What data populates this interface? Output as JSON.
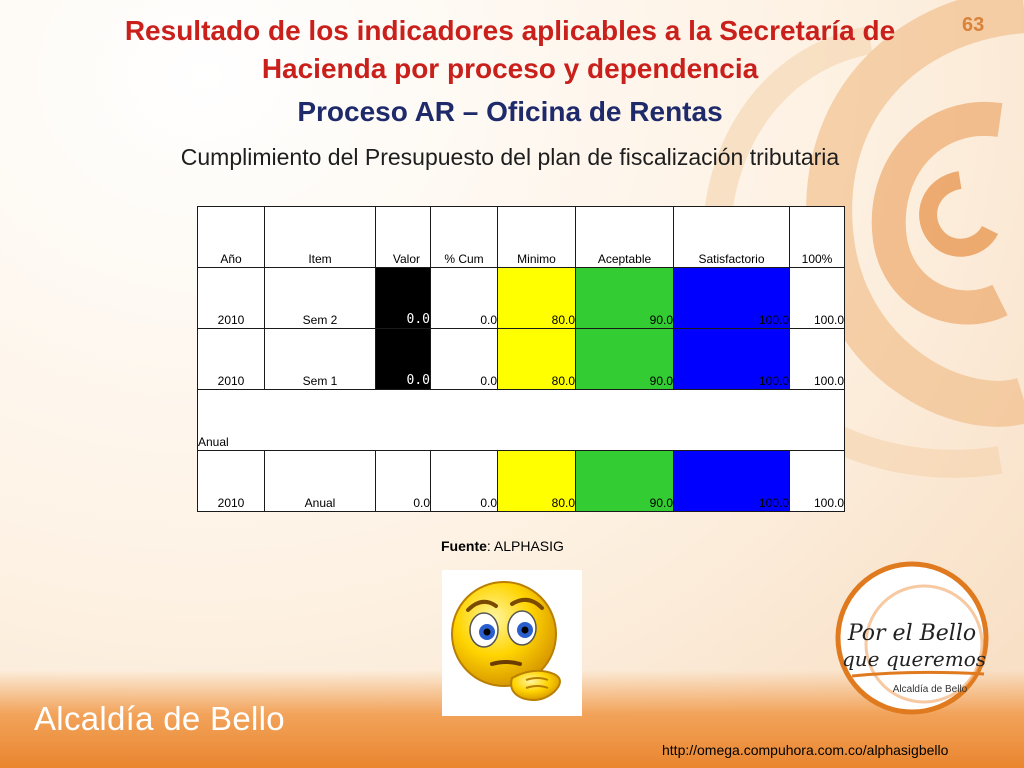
{
  "slide": {
    "page_number": "63",
    "title_line1": "Resultado de los indicadores aplicables a la Secretaría de",
    "title_line2": "Hacienda por proceso y dependencia",
    "title_line3": "Proceso AR – Oficina de Rentas",
    "subtitle": "Cumplimiento del Presupuesto del plan de fiscalización tributaria"
  },
  "table": {
    "headers": [
      "Año",
      "Item",
      "Valor",
      "% Cum",
      "Minimo",
      "Aceptable",
      "Satisfactorio",
      "100%"
    ],
    "rows": [
      [
        "2010",
        "Sem 2",
        "0.0",
        "0.0",
        "80.0",
        "90.0",
        "100.0",
        "100.0"
      ],
      [
        "2010",
        "Sem 1",
        "0.0",
        "0.0",
        "80.0",
        "90.0",
        "100.0",
        "100.0"
      ]
    ],
    "section_label": "Anual",
    "annual_row": [
      "2010",
      "Anual",
      "0.0",
      "0.0",
      "80.0",
      "90.0",
      "100.0",
      "100.0"
    ],
    "colors": {
      "valor_semester": "#000000",
      "minimo": "#ffff00",
      "aceptable": "#33cc33",
      "satisfactorio": "#0000ff"
    }
  },
  "source": {
    "label": "Fuente",
    "value": ": ALPHASIG"
  },
  "logo_right": {
    "line1": "Por el Bello",
    "line2": "que queremos",
    "line3": "Alcaldía de Bello"
  },
  "logo_bottom": "Alcaldía de Bello",
  "url": "http://omega.compuhora.com.co/alphasigbello"
}
